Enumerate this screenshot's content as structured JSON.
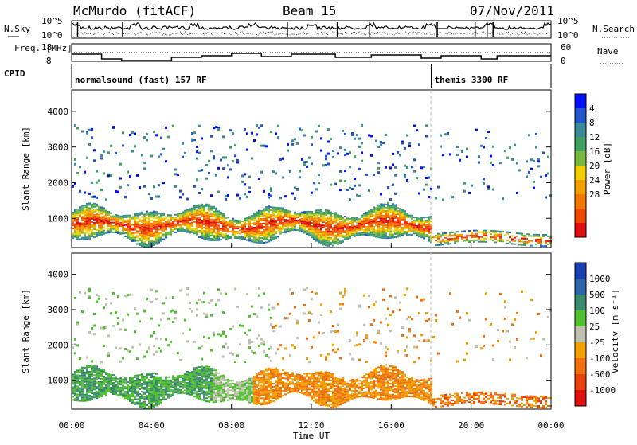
{
  "header": {
    "station": "McMurdo (fitACF)",
    "beam": "Beam 15",
    "date": "07/Nov/2011"
  },
  "status_panels": {
    "n_sky_label": "N.Sky",
    "n_search_label": "N.Search",
    "n_ticks_left": [
      "10^5",
      "10^0"
    ],
    "n_ticks_right": [
      "10^5",
      "10^0"
    ],
    "freq_label": "Freq. [MHz]",
    "freq_ticks": [
      "18",
      "8"
    ],
    "nave_label": "Nave",
    "nave_ticks": [
      "60",
      "0"
    ],
    "cpid_label": "CPID",
    "cpid_modes": [
      {
        "text": "normalsound (fast) 157 RF",
        "start_hour": 0
      },
      {
        "text": "themis 3300 RF",
        "start_hour": 18
      }
    ]
  },
  "chart_data": [
    {
      "type": "heatmap",
      "parameter": "power",
      "xlabel": "Time UT",
      "ylabel": "Slant Range [km]",
      "xlim": [
        0,
        24
      ],
      "x_ticks": [
        "00:00",
        "04:00",
        "08:00",
        "12:00",
        "16:00",
        "20:00",
        "00:00"
      ],
      "ylim": [
        180,
        4600
      ],
      "y_ticks": [
        1000,
        2000,
        3000,
        4000
      ],
      "colorbar": {
        "label": "Power [dB]",
        "ticks": [
          "4",
          "8",
          "12",
          "16",
          "20",
          "24",
          "28"
        ],
        "colors": [
          "#0010ff",
          "#2255cc",
          "#3a8a9a",
          "#3fa060",
          "#78b840",
          "#f0d000",
          "#f0a000",
          "#f07800",
          "#f04800",
          "#e01010"
        ]
      }
    },
    {
      "type": "heatmap",
      "parameter": "velocity",
      "xlabel": "Time UT",
      "ylabel": "Slant Range [km]",
      "xlim": [
        0,
        24
      ],
      "x_ticks": [
        "00:00",
        "04:00",
        "08:00",
        "12:00",
        "16:00",
        "20:00",
        "00:00"
      ],
      "ylim": [
        180,
        4600
      ],
      "y_ticks": [
        1000,
        2000,
        3000,
        4000
      ],
      "colorbar": {
        "label": "Velocity [m s⁻¹]",
        "ticks": [
          "1000",
          "500",
          "100",
          "25",
          "-25",
          "-100",
          "-500",
          "-1000"
        ],
        "colors": [
          "#1a3fb0",
          "#2d66a8",
          "#3a8a70",
          "#50c030",
          "#c0c0b0",
          "#f0a000",
          "#f07010",
          "#e84010",
          "#e01010"
        ]
      }
    }
  ]
}
